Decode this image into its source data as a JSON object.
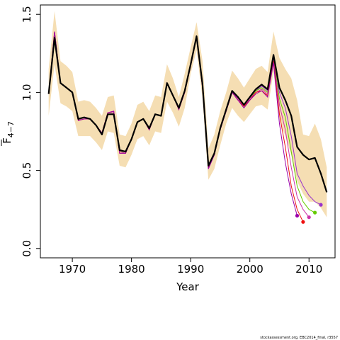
{
  "chart_data": {
    "type": "line",
    "title": "",
    "xlabel": "Year",
    "ylabel_main": "F",
    "ylabel_sub": "4−7",
    "xlim": [
      1964.6,
      2014.4
    ],
    "ylim": [
      -0.06,
      1.56
    ],
    "xticks": [
      1970,
      1980,
      1990,
      2000,
      2010
    ],
    "yticks": [
      0.0,
      0.5,
      1.0,
      1.5
    ],
    "ytick_labels": [
      "0.0",
      "0.5",
      "1.0",
      "1.5"
    ],
    "band_color": "#f5deb3",
    "main_color": "#000000",
    "confidence_band": {
      "x": [
        1966,
        1967,
        1968,
        1969,
        1970,
        1971,
        1972,
        1973,
        1974,
        1975,
        1976,
        1977,
        1978,
        1979,
        1980,
        1981,
        1982,
        1983,
        1984,
        1985,
        1986,
        1987,
        1988,
        1989,
        1990,
        1991,
        1992,
        1993,
        1994,
        1995,
        1996,
        1997,
        1998,
        1999,
        2000,
        2001,
        2002,
        2003,
        2004,
        2005,
        2006,
        2007,
        2008,
        2009,
        2010,
        2011,
        2012,
        2013
      ],
      "upper": [
        1.15,
        1.52,
        1.2,
        1.17,
        1.13,
        0.94,
        0.95,
        0.94,
        0.9,
        0.85,
        0.97,
        0.98,
        0.73,
        0.72,
        0.8,
        0.92,
        0.94,
        0.88,
        0.98,
        0.97,
        1.18,
        1.09,
        0.97,
        1.12,
        1.29,
        1.45,
        1.2,
        0.64,
        0.73,
        0.88,
        1.0,
        1.14,
        1.09,
        1.03,
        1.09,
        1.15,
        1.17,
        1.13,
        1.39,
        1.22,
        1.15,
        1.09,
        0.95,
        0.73,
        0.72,
        0.8,
        0.7,
        0.52
      ],
      "lower": [
        0.85,
        1.18,
        0.93,
        0.91,
        0.88,
        0.72,
        0.72,
        0.72,
        0.68,
        0.63,
        0.75,
        0.74,
        0.53,
        0.52,
        0.6,
        0.7,
        0.72,
        0.66,
        0.75,
        0.74,
        0.94,
        0.87,
        0.78,
        0.9,
        1.12,
        1.27,
        0.96,
        0.44,
        0.51,
        0.66,
        0.8,
        0.9,
        0.85,
        0.81,
        0.86,
        0.91,
        0.92,
        0.89,
        1.13,
        0.83,
        0.72,
        0.6,
        0.43,
        0.35,
        0.3,
        0.3,
        0.26,
        0.2
      ]
    },
    "main_series": {
      "x": [
        1966,
        1967,
        1968,
        1969,
        1970,
        1971,
        1972,
        1973,
        1974,
        1975,
        1976,
        1977,
        1978,
        1979,
        1980,
        1981,
        1982,
        1983,
        1984,
        1985,
        1986,
        1987,
        1988,
        1989,
        1990,
        1991,
        1992,
        1993,
        1994,
        1995,
        1996,
        1997,
        1998,
        1999,
        2000,
        2001,
        2002,
        2003,
        2004,
        2005,
        2006,
        2007,
        2008,
        2009,
        2010,
        2011,
        2012,
        2013
      ],
      "y": [
        0.99,
        1.35,
        1.06,
        1.03,
        1.0,
        0.83,
        0.84,
        0.83,
        0.79,
        0.73,
        0.86,
        0.86,
        0.63,
        0.62,
        0.7,
        0.81,
        0.83,
        0.77,
        0.86,
        0.85,
        1.06,
        0.98,
        0.9,
        1.01,
        1.18,
        1.36,
        1.05,
        0.53,
        0.61,
        0.77,
        0.89,
        1.01,
        0.97,
        0.92,
        0.97,
        1.02,
        1.05,
        1.02,
        1.24,
        1.03,
        0.95,
        0.85,
        0.65,
        0.6,
        0.57,
        0.58,
        0.48,
        0.36
      ]
    },
    "retro_series": [
      {
        "color": "#9933cc",
        "x": [
          1966,
          1967,
          1968,
          1969,
          1970,
          1971,
          1972,
          1973,
          1974,
          1975,
          1976,
          1977,
          1978,
          1979,
          1980,
          1981,
          1982,
          1983,
          1984,
          1985,
          1986,
          1987,
          1988,
          1989,
          1990,
          1991,
          1992,
          1993,
          1994,
          1995,
          1996,
          1997,
          1998,
          1999,
          2000,
          2001,
          2002,
          2003,
          2004,
          2005,
          2006,
          2007,
          2008,
          2009,
          2010,
          2011,
          2012
        ],
        "y": [
          0.99,
          1.36,
          1.06,
          1.03,
          1.0,
          0.83,
          0.84,
          0.83,
          0.79,
          0.74,
          0.86,
          0.86,
          0.63,
          0.62,
          0.7,
          0.81,
          0.83,
          0.77,
          0.86,
          0.85,
          1.06,
          0.98,
          0.9,
          1.01,
          1.18,
          1.36,
          1.04,
          0.53,
          0.61,
          0.77,
          0.89,
          1.0,
          0.97,
          0.92,
          0.97,
          1.01,
          1.04,
          1.01,
          1.23,
          1.0,
          0.9,
          0.72,
          0.48,
          0.4,
          0.34,
          0.3,
          0.28
        ]
      },
      {
        "color": "#66cc00",
        "x": [
          1966,
          1967,
          1968,
          1969,
          1970,
          1971,
          1972,
          1973,
          1974,
          1975,
          1976,
          1977,
          1978,
          1979,
          1980,
          1981,
          1982,
          1983,
          1984,
          1985,
          1986,
          1987,
          1988,
          1989,
          1990,
          1991,
          1992,
          1993,
          1994,
          1995,
          1996,
          1997,
          1998,
          1999,
          2000,
          2001,
          2002,
          2003,
          2004,
          2005,
          2006,
          2007,
          2008,
          2009,
          2010,
          2011
        ],
        "y": [
          0.99,
          1.37,
          1.06,
          1.03,
          1.0,
          0.82,
          0.83,
          0.83,
          0.79,
          0.74,
          0.87,
          0.87,
          0.62,
          0.62,
          0.7,
          0.81,
          0.83,
          0.76,
          0.86,
          0.85,
          1.06,
          0.98,
          0.89,
          1.01,
          1.18,
          1.36,
          1.04,
          0.52,
          0.61,
          0.77,
          0.88,
          1.0,
          0.96,
          0.91,
          0.96,
          1.01,
          1.03,
          1.0,
          1.22,
          0.96,
          0.84,
          0.62,
          0.4,
          0.3,
          0.25,
          0.23
        ]
      },
      {
        "color": "#cc33aa",
        "x": [
          1966,
          1967,
          1968,
          1969,
          1970,
          1971,
          1972,
          1973,
          1974,
          1975,
          1976,
          1977,
          1978,
          1979,
          1980,
          1981,
          1982,
          1983,
          1984,
          1985,
          1986,
          1987,
          1988,
          1989,
          1990,
          1991,
          1992,
          1993,
          1994,
          1995,
          1996,
          1997,
          1998,
          1999,
          2000,
          2001,
          2002,
          2003,
          2004,
          2005,
          2006,
          2007,
          2008,
          2009,
          2010
        ],
        "y": [
          0.99,
          1.38,
          1.06,
          1.03,
          1.0,
          0.82,
          0.83,
          0.83,
          0.79,
          0.74,
          0.87,
          0.87,
          0.62,
          0.61,
          0.7,
          0.81,
          0.83,
          0.76,
          0.86,
          0.85,
          1.06,
          0.98,
          0.89,
          1.01,
          1.17,
          1.36,
          1.03,
          0.52,
          0.6,
          0.77,
          0.88,
          1.0,
          0.96,
          0.91,
          0.96,
          1.0,
          1.02,
          0.99,
          1.21,
          0.92,
          0.76,
          0.52,
          0.33,
          0.25,
          0.2
        ]
      },
      {
        "color": "#ee1111",
        "x": [
          1966,
          1967,
          1968,
          1969,
          1970,
          1971,
          1972,
          1973,
          1974,
          1975,
          1976,
          1977,
          1978,
          1979,
          1980,
          1981,
          1982,
          1983,
          1984,
          1985,
          1986,
          1987,
          1988,
          1989,
          1990,
          1991,
          1992,
          1993,
          1994,
          1995,
          1996,
          1997,
          1998,
          1999,
          2000,
          2001,
          2002,
          2003,
          2004,
          2005,
          2006,
          2007,
          2008,
          2009
        ],
        "y": [
          0.99,
          1.39,
          1.06,
          1.03,
          1.0,
          0.82,
          0.83,
          0.83,
          0.79,
          0.74,
          0.87,
          0.88,
          0.61,
          0.61,
          0.7,
          0.81,
          0.83,
          0.76,
          0.86,
          0.85,
          1.06,
          0.98,
          0.89,
          1.0,
          1.17,
          1.36,
          1.03,
          0.52,
          0.6,
          0.77,
          0.88,
          1.0,
          0.95,
          0.91,
          0.95,
          1.0,
          1.01,
          0.98,
          1.2,
          0.86,
          0.65,
          0.4,
          0.25,
          0.17
        ]
      },
      {
        "color": "#9900aa",
        "x": [
          1966,
          1967,
          1968,
          1969,
          1970,
          1971,
          1972,
          1973,
          1974,
          1975,
          1976,
          1977,
          1978,
          1979,
          1980,
          1981,
          1982,
          1983,
          1984,
          1985,
          1986,
          1987,
          1988,
          1989,
          1990,
          1991,
          1992,
          1993,
          1994,
          1995,
          1996,
          1997,
          1998,
          1999,
          2000,
          2001,
          2002,
          2003,
          2004,
          2005,
          2006,
          2007,
          2008
        ],
        "y": [
          0.99,
          1.39,
          1.06,
          1.03,
          1.0,
          0.82,
          0.83,
          0.83,
          0.79,
          0.74,
          0.87,
          0.88,
          0.61,
          0.61,
          0.7,
          0.81,
          0.83,
          0.76,
          0.86,
          0.85,
          1.06,
          0.98,
          0.89,
          1.0,
          1.17,
          1.36,
          1.03,
          0.51,
          0.6,
          0.76,
          0.88,
          1.0,
          0.95,
          0.9,
          0.95,
          0.99,
          1.01,
          0.97,
          1.19,
          0.8,
          0.55,
          0.35,
          0.21
        ]
      }
    ]
  },
  "footer": {
    "text": "stockassessment.org, EBC2014_final, r3557"
  }
}
